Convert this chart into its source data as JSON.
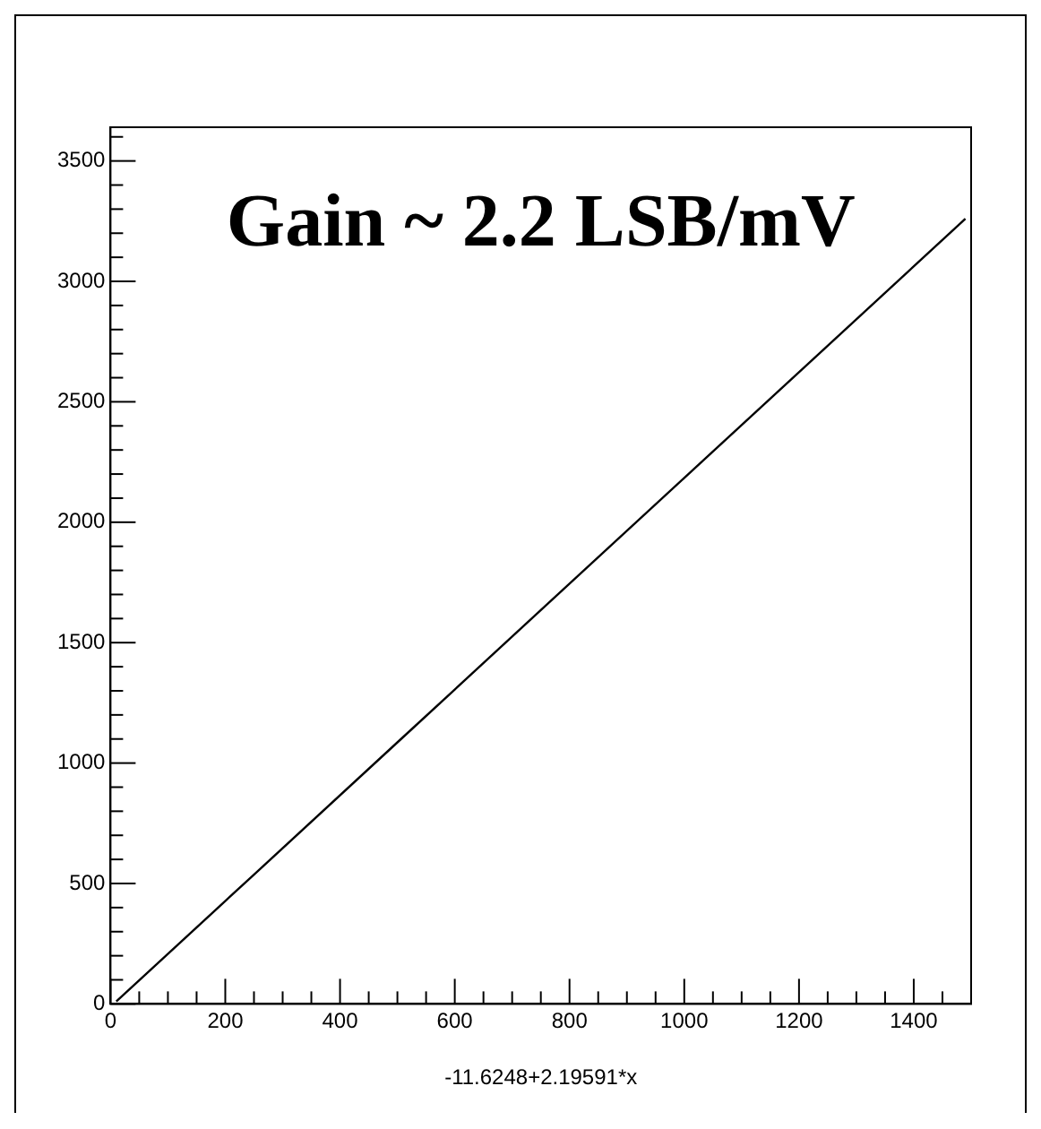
{
  "chart_data": {
    "type": "line",
    "xlabel": "-11.6248+2.19591*x",
    "annotations": [
      "Gain ~ 2.2 LSB/mV"
    ],
    "x": [
      10,
      250,
      500,
      750,
      1000,
      1250,
      1490
    ],
    "series": [
      {
        "color": "#000000",
        "values": [
          10,
          537,
          1086,
          1635,
          2184,
          2733,
          3260
        ]
      }
    ],
    "xlim": [
      0,
      1500
    ],
    "ylim": [
      0,
      3640
    ],
    "xticks": [
      0,
      {
        "value": 50,
        "label": null
      },
      {
        "value": 100,
        "label": null
      },
      {
        "value": 150,
        "label": null
      },
      200,
      {
        "value": 250,
        "label": null
      },
      {
        "value": 300,
        "label": null
      },
      {
        "value": 350,
        "label": null
      },
      400,
      {
        "value": 450,
        "label": null
      },
      {
        "value": 500,
        "label": null
      },
      {
        "value": 550,
        "label": null
      },
      600,
      {
        "value": 650,
        "label": null
      },
      {
        "value": 700,
        "label": null
      },
      {
        "value": 750,
        "label": null
      },
      800,
      {
        "value": 850,
        "label": null
      },
      {
        "value": 900,
        "label": null
      },
      {
        "value": 950,
        "label": null
      },
      1000,
      {
        "value": 1050,
        "label": null
      },
      {
        "value": 1100,
        "label": null
      },
      {
        "value": 1150,
        "label": null
      },
      1200,
      {
        "value": 1250,
        "label": null
      },
      {
        "value": 1300,
        "label": null
      },
      {
        "value": 1350,
        "label": null
      },
      1400,
      {
        "value": 1450,
        "label": null
      }
    ],
    "yticks": [
      0,
      {
        "value": 100,
        "label": null
      },
      {
        "value": 200,
        "label": null
      },
      {
        "value": 300,
        "label": null
      },
      {
        "value": 400,
        "label": null
      },
      500,
      {
        "value": 600,
        "label": null
      },
      {
        "value": 700,
        "label": null
      },
      {
        "value": 800,
        "label": null
      },
      {
        "value": 900,
        "label": null
      },
      1000,
      {
        "value": 1100,
        "label": null
      },
      {
        "value": 1200,
        "label": null
      },
      {
        "value": 1300,
        "label": null
      },
      {
        "value": 1400,
        "label": null
      },
      1500,
      {
        "value": 1600,
        "label": null
      },
      {
        "value": 1700,
        "label": null
      },
      {
        "value": 1800,
        "label": null
      },
      {
        "value": 1900,
        "label": null
      },
      2000,
      {
        "value": 2100,
        "label": null
      },
      {
        "value": 2200,
        "label": null
      },
      {
        "value": 2300,
        "label": null
      },
      {
        "value": 2400,
        "label": null
      },
      2500,
      {
        "value": 2600,
        "label": null
      },
      {
        "value": 2700,
        "label": null
      },
      {
        "value": 2800,
        "label": null
      },
      {
        "value": 2900,
        "label": null
      },
      3000,
      {
        "value": 3100,
        "label": null
      },
      {
        "value": 3200,
        "label": null
      },
      {
        "value": 3300,
        "label": null
      },
      {
        "value": 3400,
        "label": null
      },
      3500,
      {
        "value": 3600,
        "label": null
      }
    ],
    "grid": false,
    "legend": false,
    "marker": "none",
    "line_style": "solid"
  }
}
